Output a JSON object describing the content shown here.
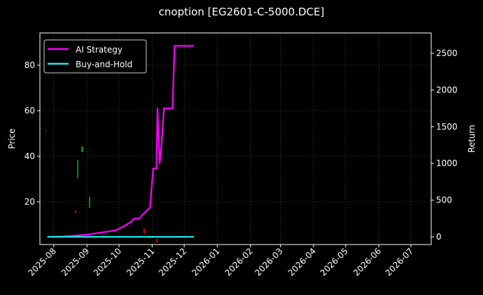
{
  "title": "cnoption [EG2601-C-5000.DCE]",
  "chart_data": {
    "type": "line",
    "title": "cnoption [EG2601-C-5000.DCE]",
    "xlabel": "",
    "ylabel": "Price",
    "ylabel_right": "Return",
    "ylim": [
      2,
      93
    ],
    "ylim_right": [
      -100,
      2700
    ],
    "grid": true,
    "legend_position": "upper left",
    "x_ticks": [
      "2025-08",
      "2025-09",
      "2025-10",
      "2025-11",
      "2025-12",
      "2026-01",
      "2026-02",
      "2026-03",
      "2026-04",
      "2026-05",
      "2026-06",
      "2026-07"
    ],
    "y_ticks_left": [
      20,
      40,
      60,
      80
    ],
    "y_ticks_right": [
      0,
      500,
      1000,
      1500,
      2000,
      2500
    ],
    "series": [
      {
        "name": "AI Strategy",
        "color": "#ff00ff",
        "axis": "right",
        "x": [
          "2025-07-26",
          "2025-08-10",
          "2025-08-20",
          "2025-09-01",
          "2025-09-10",
          "2025-09-20",
          "2025-09-28",
          "2025-10-05",
          "2025-10-12",
          "2025-10-15",
          "2025-10-20",
          "2025-10-25",
          "2025-10-30",
          "2025-11-02",
          "2025-11-05",
          "2025-11-06",
          "2025-11-08",
          "2025-11-10",
          "2025-11-12",
          "2025-11-20",
          "2025-11-22",
          "2025-12-10"
        ],
        "values": [
          0,
          5,
          15,
          30,
          50,
          70,
          90,
          140,
          200,
          250,
          250,
          330,
          400,
          930,
          930,
          1750,
          1000,
          1300,
          1750,
          1750,
          2600,
          2600
        ]
      },
      {
        "name": "Buy-and-Hold",
        "color": "#22e5e5",
        "axis": "right",
        "x": [
          "2025-07-26",
          "2025-12-10"
        ],
        "values": [
          0,
          0
        ]
      }
    ]
  },
  "legend": [
    {
      "label": "AI Strategy",
      "color": "#ff00ff"
    },
    {
      "label": "Buy-and-Hold",
      "color": "#22e5e5"
    }
  ]
}
